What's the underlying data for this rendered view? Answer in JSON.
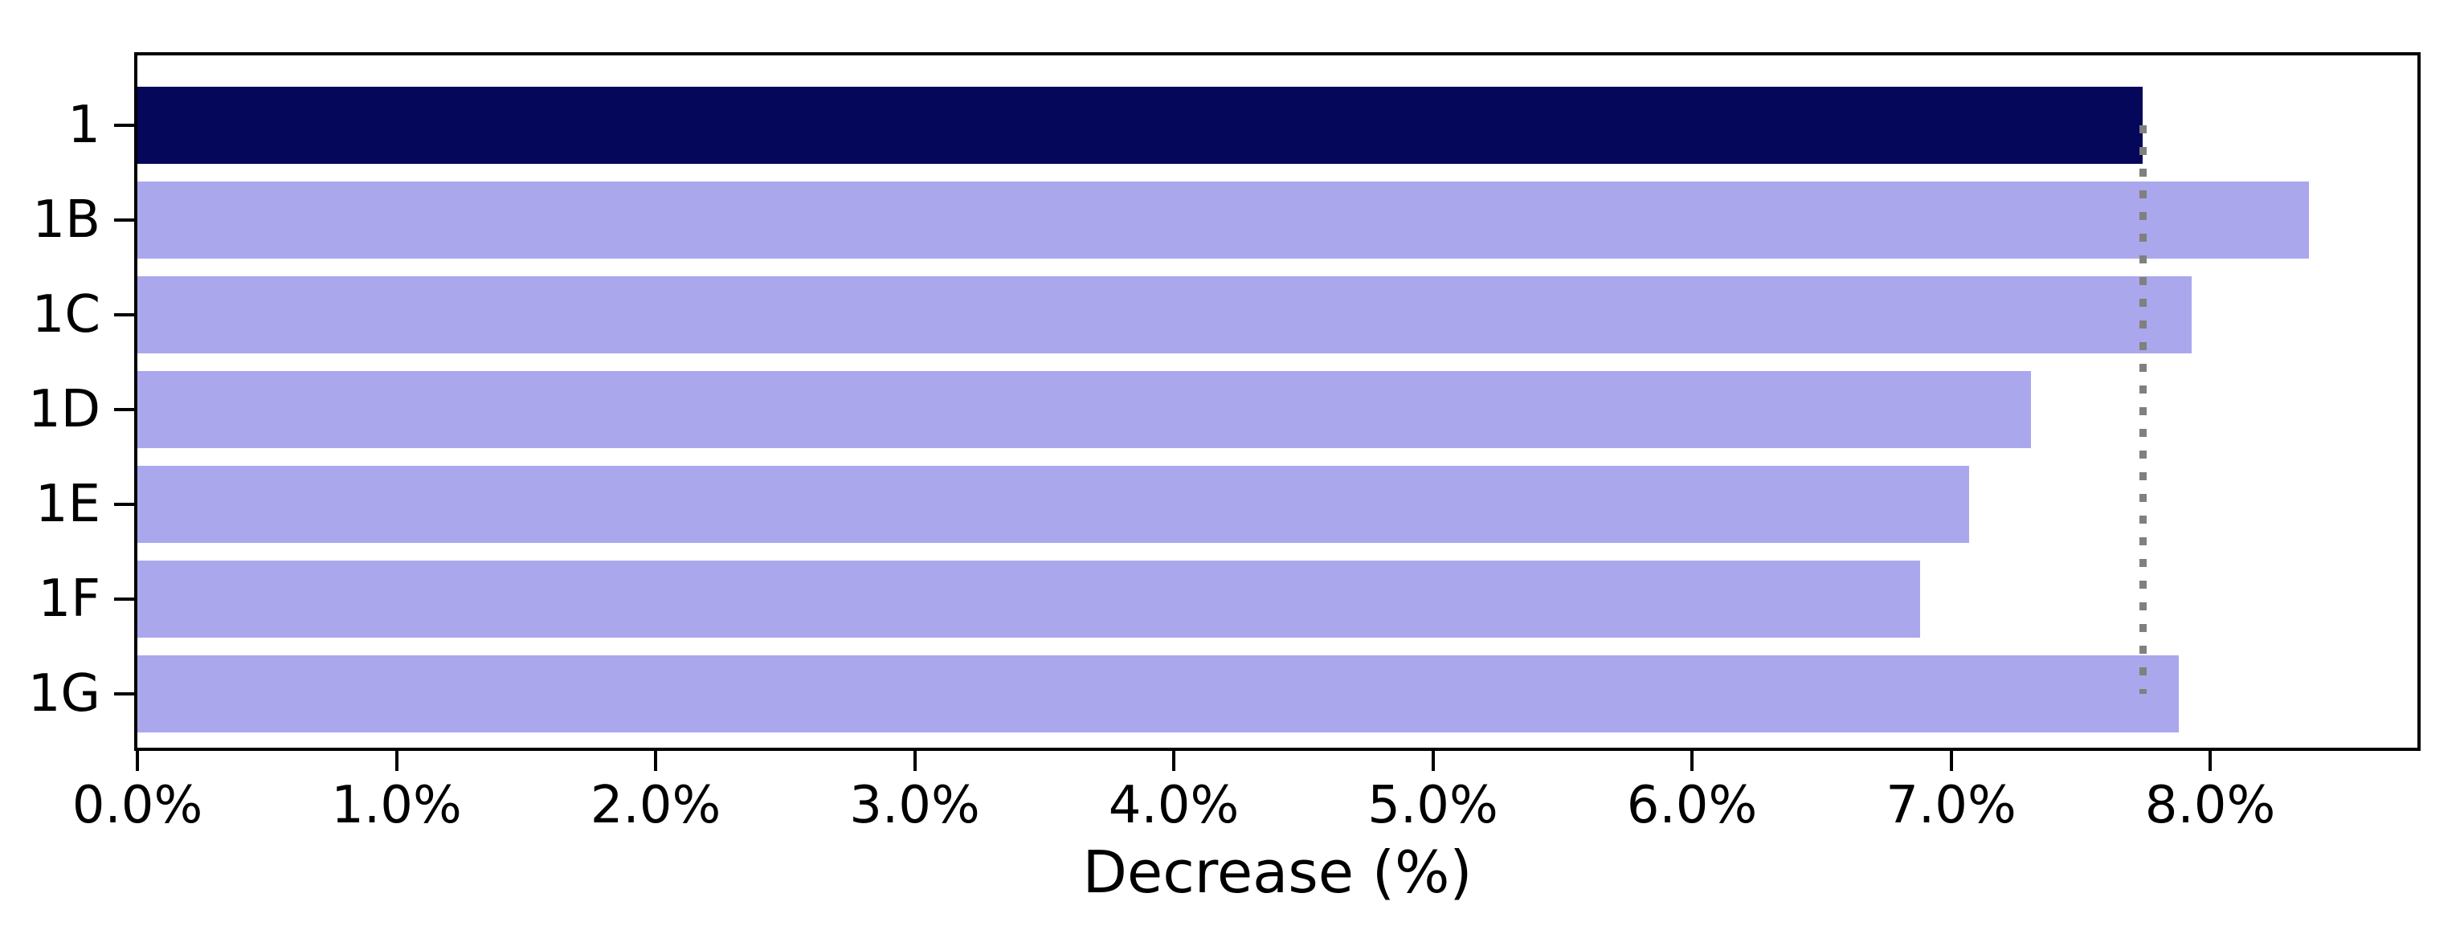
{
  "figure": {
    "background_color": "#ffffff",
    "frame_color": "#000000",
    "text_color": "#000000"
  },
  "chart_data": {
    "type": "bar",
    "orientation": "horizontal",
    "title": "",
    "xlabel": "Decrease (%)",
    "ylabel": "",
    "categories": [
      "1",
      "1B",
      "1C",
      "1D",
      "1E",
      "1F",
      "1G"
    ],
    "values": [
      7.74,
      8.38,
      7.93,
      7.31,
      7.07,
      6.88,
      7.88
    ],
    "value_unit": "%",
    "bar_colors": [
      "#04075a",
      "#aba7ed",
      "#aba7ed",
      "#aba7ed",
      "#aba7ed",
      "#aba7ed",
      "#aba7ed"
    ],
    "highlight_category": "1",
    "highlight_color": "#04075a",
    "default_bar_color": "#aba7ed",
    "xlim": [
      0,
      8.8
    ],
    "x_tick_values": [
      0,
      1,
      2,
      3,
      4,
      5,
      6,
      7,
      8
    ],
    "x_tick_labels": [
      "0.0%",
      "1.0%",
      "2.0%",
      "3.0%",
      "4.0%",
      "5.0%",
      "6.0%",
      "7.0%",
      "8.0%"
    ],
    "grid": false,
    "legend": false,
    "reference_line": {
      "value": 7.74,
      "orientation": "vertical",
      "style": "dotted",
      "color": "#80807c",
      "from_category": "1",
      "to_category": "1G"
    }
  }
}
